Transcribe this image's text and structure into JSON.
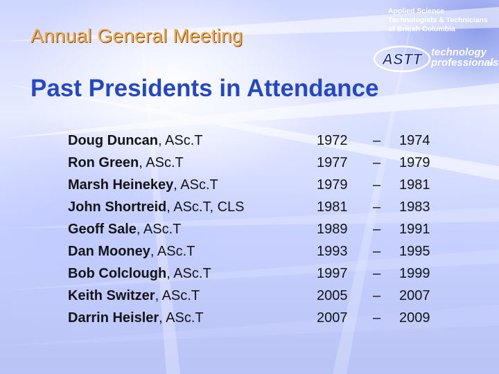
{
  "header": {
    "meeting_title": "Annual General Meeting",
    "org_lines": [
      "Applied Science",
      "Technologists & Technicians",
      "of British Columbia"
    ],
    "logo": {
      "mark_text": "ASTT",
      "tagline_lines": [
        "technology",
        "professionals"
      ],
      "trademark": "TM"
    }
  },
  "slide_title": "Past Presidents in Attendance",
  "presidents": [
    {
      "name": "Doug Duncan",
      "credentials": ", ASc.T",
      "start": "1972",
      "sep": "–",
      "end": "1974"
    },
    {
      "name": "Ron Green",
      "credentials": ", ASc.T",
      "start": "1977",
      "sep": "–",
      "end": "1979"
    },
    {
      "name": "Marsh Heinekey",
      "credentials": ", ASc.T",
      "start": "1979",
      "sep": "–",
      "end": "1981"
    },
    {
      "name": "John Shortreid",
      "credentials": ", ASc.T, CLS",
      "start": "1981",
      "sep": "–",
      "end": "1983"
    },
    {
      "name": "Geoff Sale",
      "credentials": ", ASc.T",
      "start": "1989",
      "sep": "–",
      "end": "1991"
    },
    {
      "name": "Dan Mooney",
      "credentials": ", ASc.T",
      "start": "1993",
      "sep": "–",
      "end": "1995"
    },
    {
      "name": "Bob Colclough",
      "credentials": ", ASc.T",
      "start": "1997",
      "sep": "–",
      "end": "1999"
    },
    {
      "name": "Keith Switzer",
      "credentials": ", ASc.T",
      "start": "2005",
      "sep": "–",
      "end": "2007"
    },
    {
      "name": "Darrin Heisler",
      "credentials": ", ASc.T",
      "start": "2007",
      "sep": "–",
      "end": "2009"
    }
  ],
  "colors": {
    "meeting_title": "#f2a94a",
    "slide_title": "#2447c7",
    "body_text": "#141414"
  }
}
